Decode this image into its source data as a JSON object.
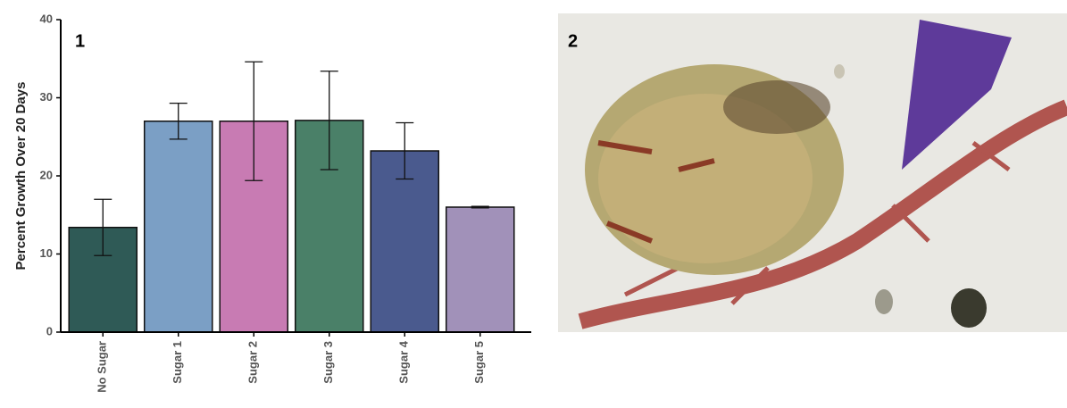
{
  "panel_labels": [
    "1",
    "2"
  ],
  "chart_data": {
    "type": "bar",
    "y_label": "Percent Growth Over 20 Days",
    "categories": [
      "No Sugar",
      "Sugar 1",
      "Sugar 2",
      "Sugar 3",
      "Sugar 4",
      "Sugar 5"
    ],
    "values": [
      13.4,
      27.0,
      27.0,
      27.1,
      23.2,
      16.0
    ],
    "errors": [
      3.6,
      2.3,
      7.6,
      6.3,
      3.6,
      0.1
    ],
    "colors": [
      "#2f5a56",
      "#7b9fc5",
      "#c87bb3",
      "#4a8068",
      "#4a5a8e",
      "#a191b9"
    ],
    "ylim": [
      0,
      40
    ],
    "yticks": [
      0,
      10,
      20,
      30,
      40
    ],
    "grid": false
  }
}
